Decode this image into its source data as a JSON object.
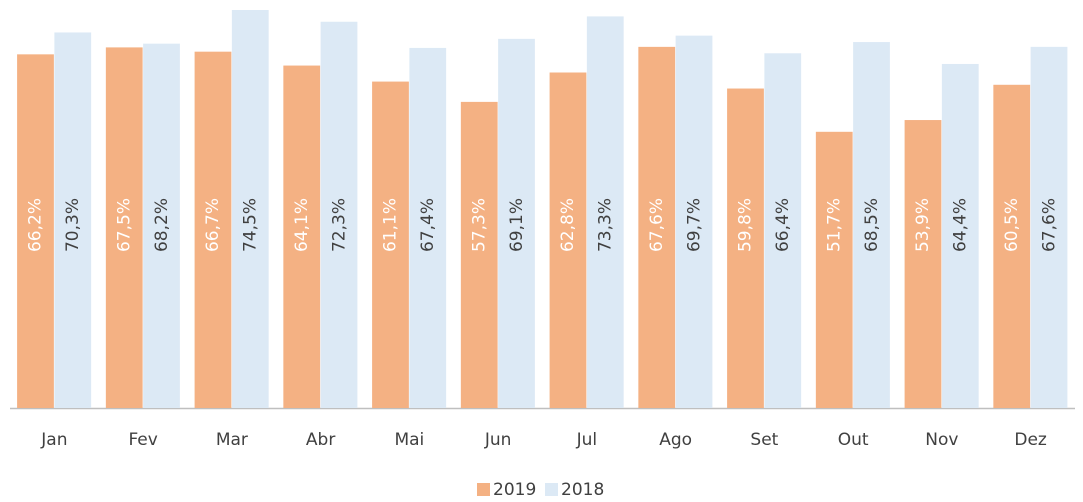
{
  "chart_data": {
    "type": "bar",
    "categories": [
      "Jan",
      "Fev",
      "Mar",
      "Abr",
      "Mai",
      "Jun",
      "Jul",
      "Ago",
      "Set",
      "Out",
      "Nov",
      "Dez"
    ],
    "series": [
      {
        "name": "2019",
        "color": "#f4b183",
        "values": [
          66.2,
          67.5,
          66.7,
          64.1,
          61.1,
          57.3,
          62.8,
          67.6,
          59.8,
          51.7,
          53.9,
          60.5
        ],
        "value_labels": [
          "66,2%",
          "67,5%",
          "66,7%",
          "64,1%",
          "61,1%",
          "57,3%",
          "62,8%",
          "67,6%",
          "59,8%",
          "51,7%",
          "53,9%",
          "60,5%"
        ]
      },
      {
        "name": "2018",
        "color": "#dce9f5",
        "values": [
          70.3,
          68.2,
          74.5,
          72.3,
          67.4,
          69.1,
          73.3,
          69.7,
          66.4,
          68.5,
          64.4,
          67.6
        ],
        "value_labels": [
          "70,3%",
          "68,2%",
          "74,5%",
          "72,3%",
          "67,4%",
          "69,1%",
          "73,3%",
          "69,7%",
          "66,4%",
          "68,5%",
          "64,4%",
          "67,6%"
        ]
      }
    ]
  }
}
